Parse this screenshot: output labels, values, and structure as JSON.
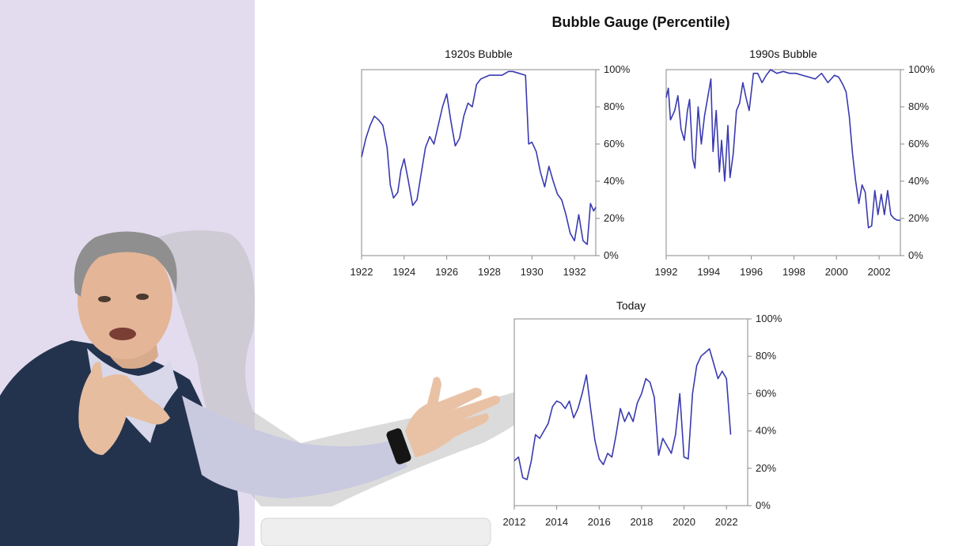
{
  "title": "Bubble Gauge (Percentile)",
  "colors": {
    "line": "#3a3ab0",
    "frame": "#8a8a8a",
    "backdrop": "#e3dcef"
  },
  "photo": {
    "subject": "presenter-gesturing"
  },
  "chart_data": [
    {
      "type": "line",
      "title": "1920s Bubble",
      "xlabel": "",
      "ylabel": "",
      "xlim": [
        1922,
        1933
      ],
      "ylim": [
        0,
        100
      ],
      "x_ticks": [
        "1922",
        "1924",
        "1926",
        "1928",
        "1930",
        "1932"
      ],
      "y_ticks": [
        "0%",
        "20%",
        "40%",
        "60%",
        "80%",
        "100%"
      ],
      "series": [
        {
          "x": [
            1922.0,
            1922.2,
            1922.4,
            1922.6,
            1922.8,
            1923.0,
            1923.2,
            1923.35,
            1923.5,
            1923.7,
            1923.85,
            1924.0,
            1924.2,
            1924.4,
            1924.6,
            1924.8,
            1925.0,
            1925.2,
            1925.4,
            1925.6,
            1925.8,
            1926.0,
            1926.2,
            1926.4,
            1926.6,
            1926.8,
            1927.0,
            1927.2,
            1927.4,
            1927.6,
            1927.8,
            1928.0,
            1928.3,
            1928.6,
            1928.9,
            1929.1,
            1929.4,
            1929.7,
            1929.85,
            1930.0,
            1930.2,
            1930.4,
            1930.6,
            1930.8,
            1931.0,
            1931.2,
            1931.4,
            1931.6,
            1931.8,
            1932.0,
            1932.2,
            1932.4,
            1932.6,
            1932.75,
            1932.9,
            1933.0
          ],
          "values": [
            53,
            63,
            70,
            75,
            73,
            70,
            58,
            38,
            31,
            34,
            46,
            52,
            40,
            27,
            30,
            44,
            58,
            64,
            60,
            70,
            80,
            87,
            72,
            59,
            63,
            75,
            82,
            80,
            92,
            95,
            96,
            97,
            97,
            97,
            99,
            99,
            98,
            97,
            60,
            61,
            56,
            45,
            37,
            48,
            40,
            33,
            30,
            22,
            12,
            8,
            22,
            8,
            6,
            28,
            24,
            26
          ]
        }
      ]
    },
    {
      "type": "line",
      "title": "1990s Bubble",
      "xlabel": "",
      "ylabel": "",
      "xlim": [
        1992,
        2003
      ],
      "ylim": [
        0,
        100
      ],
      "x_ticks": [
        "1992",
        "1994",
        "1996",
        "1998",
        "2000",
        "2002"
      ],
      "y_ticks": [
        "0%",
        "20%",
        "40%",
        "60%",
        "80%",
        "100%"
      ],
      "series": [
        {
          "x": [
            1992.0,
            1992.1,
            1992.2,
            1992.4,
            1992.55,
            1992.7,
            1992.85,
            1993.0,
            1993.1,
            1993.25,
            1993.35,
            1993.5,
            1993.65,
            1993.8,
            1993.95,
            1994.1,
            1994.2,
            1994.35,
            1994.5,
            1994.6,
            1994.75,
            1994.9,
            1995.0,
            1995.15,
            1995.3,
            1995.45,
            1995.6,
            1995.75,
            1995.9,
            1996.1,
            1996.3,
            1996.5,
            1996.7,
            1996.9,
            1997.2,
            1997.5,
            1997.8,
            1998.1,
            1998.4,
            1998.7,
            1999.0,
            1999.3,
            1999.6,
            1999.9,
            2000.1,
            2000.3,
            2000.45,
            2000.6,
            2000.75,
            2000.9,
            2001.05,
            2001.2,
            2001.35,
            2001.5,
            2001.65,
            2001.8,
            2001.95,
            2002.1,
            2002.25,
            2002.4,
            2002.55,
            2002.7,
            2002.85,
            2003.0
          ],
          "values": [
            85,
            90,
            73,
            78,
            86,
            68,
            62,
            78,
            84,
            52,
            47,
            80,
            60,
            75,
            85,
            95,
            56,
            78,
            45,
            62,
            40,
            70,
            42,
            55,
            78,
            82,
            93,
            85,
            78,
            98,
            98,
            93,
            97,
            100,
            98,
            99,
            98,
            98,
            97,
            96,
            95,
            98,
            93,
            97,
            96,
            92,
            88,
            75,
            55,
            40,
            28,
            38,
            34,
            15,
            16,
            35,
            22,
            33,
            22,
            35,
            22,
            20,
            19,
            19
          ]
        }
      ]
    },
    {
      "type": "line",
      "title": "Today",
      "xlabel": "",
      "ylabel": "",
      "xlim": [
        2012,
        2023
      ],
      "ylim": [
        0,
        100
      ],
      "x_ticks": [
        "2012",
        "2014",
        "2016",
        "2018",
        "2020",
        "2022"
      ],
      "y_ticks": [
        "0%",
        "20%",
        "40%",
        "60%",
        "80%",
        "100%"
      ],
      "series": [
        {
          "x": [
            2012.0,
            2012.2,
            2012.4,
            2012.6,
            2012.8,
            2013.0,
            2013.2,
            2013.4,
            2013.6,
            2013.8,
            2014.0,
            2014.2,
            2014.4,
            2014.6,
            2014.8,
            2015.0,
            2015.2,
            2015.4,
            2015.6,
            2015.8,
            2016.0,
            2016.2,
            2016.4,
            2016.6,
            2016.8,
            2017.0,
            2017.2,
            2017.4,
            2017.6,
            2017.8,
            2018.0,
            2018.2,
            2018.4,
            2018.6,
            2018.8,
            2019.0,
            2019.2,
            2019.4,
            2019.6,
            2019.8,
            2020.0,
            2020.2,
            2020.4,
            2020.6,
            2020.8,
            2021.0,
            2021.2,
            2021.4,
            2021.6,
            2021.8,
            2022.0,
            2022.2
          ],
          "values": [
            24,
            26,
            15,
            14,
            24,
            38,
            36,
            40,
            44,
            53,
            56,
            55,
            52,
            56,
            47,
            52,
            60,
            70,
            52,
            35,
            25,
            22,
            28,
            26,
            38,
            52,
            45,
            50,
            45,
            55,
            60,
            68,
            66,
            58,
            27,
            36,
            32,
            28,
            38,
            60,
            26,
            25,
            60,
            75,
            80,
            82,
            84,
            76,
            68,
            72,
            68,
            38
          ]
        }
      ]
    }
  ]
}
